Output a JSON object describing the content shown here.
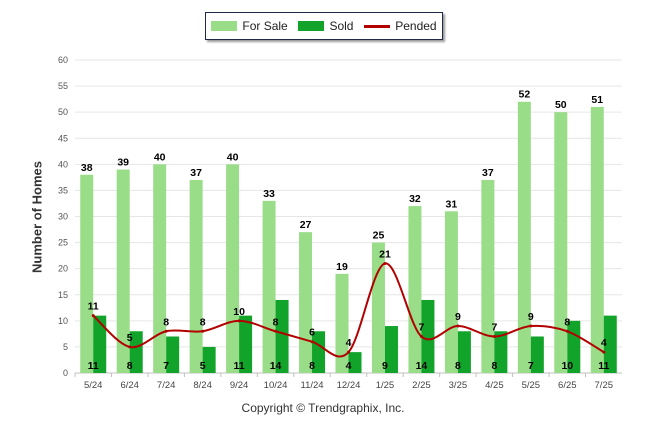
{
  "chart_data": {
    "type": "bar",
    "categories": [
      "5/24",
      "6/24",
      "7/24",
      "8/24",
      "9/24",
      "10/24",
      "11/24",
      "12/24",
      "1/25",
      "2/25",
      "3/25",
      "4/25",
      "5/25",
      "6/25",
      "7/25"
    ],
    "series": [
      {
        "name": "For Sale",
        "type": "bar",
        "color": "#99dd88",
        "values": [
          38,
          39,
          40,
          37,
          40,
          33,
          27,
          19,
          25,
          32,
          31,
          37,
          52,
          50,
          51
        ]
      },
      {
        "name": "Sold",
        "type": "bar",
        "color": "#11a32a",
        "values": [
          11,
          8,
          7,
          5,
          11,
          14,
          8,
          4,
          9,
          14,
          8,
          8,
          7,
          10,
          11
        ]
      },
      {
        "name": "Pended",
        "type": "line",
        "color": "#b30000",
        "values": [
          11,
          5,
          8,
          8,
          10,
          8,
          6,
          4,
          21,
          7,
          9,
          7,
          9,
          8,
          4
        ]
      }
    ],
    "ylabel": "Number of Homes",
    "ylim": [
      0,
      60
    ],
    "yticks": [
      0,
      5,
      10,
      15,
      20,
      25,
      30,
      35,
      40,
      45,
      50,
      55,
      60
    ],
    "grid": true,
    "legend_position": "top-center"
  },
  "footer": {
    "copyright": "Copyright © Trendgraphix, Inc."
  }
}
